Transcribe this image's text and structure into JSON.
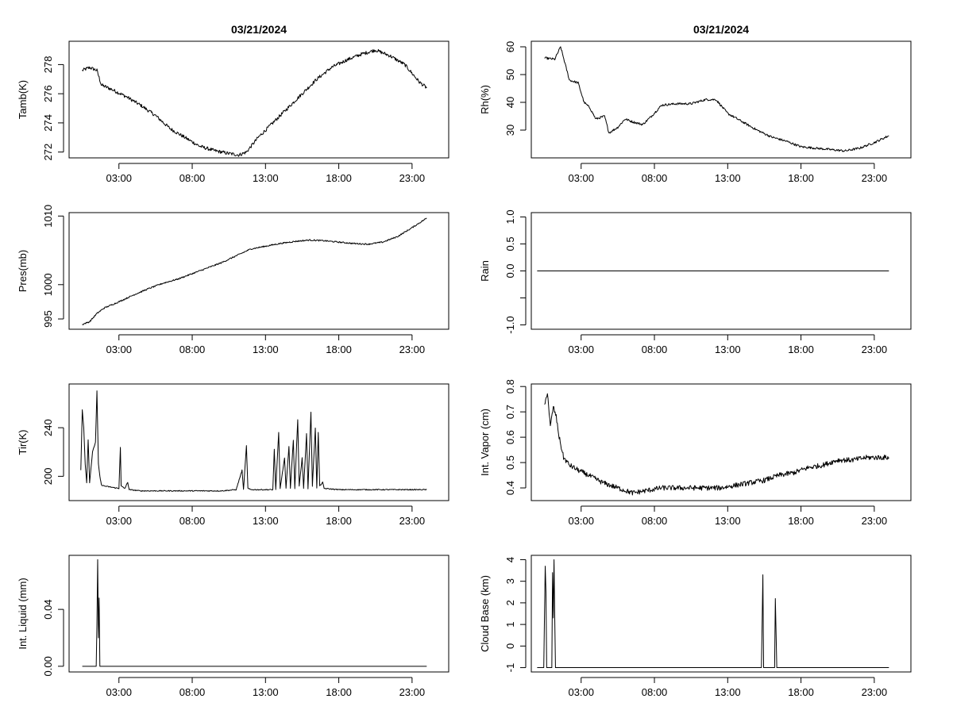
{
  "chart_data": [
    {
      "type": "line",
      "title": "03/21/2024",
      "ylabel": "Tamb(K)",
      "x_unit": "hours",
      "xlim": [
        -0.4,
        25.5
      ],
      "ylim": [
        271.6,
        279.6
      ],
      "xticks": [
        3,
        8,
        13,
        18,
        23
      ],
      "xtick_labels": [
        "03:00",
        "08:00",
        "13:00",
        "18:00",
        "23:00"
      ],
      "yticks": [
        272,
        274,
        276,
        278
      ],
      "ytick_labels": [
        "272",
        "274",
        "276",
        "278"
      ],
      "noise": 0.12,
      "points": [
        [
          0.5,
          277.6
        ],
        [
          1.0,
          277.8
        ],
        [
          1.5,
          277.6
        ],
        [
          1.8,
          276.6
        ],
        [
          2.5,
          276.3
        ],
        [
          3.5,
          275.8
        ],
        [
          4.5,
          275.2
        ],
        [
          5.5,
          274.5
        ],
        [
          6.5,
          273.6
        ],
        [
          7.5,
          273.0
        ],
        [
          8.5,
          272.4
        ],
        [
          9.5,
          272.1
        ],
        [
          10.5,
          271.9
        ],
        [
          11.2,
          271.8
        ],
        [
          11.7,
          272.0
        ],
        [
          12.5,
          273.0
        ],
        [
          13.5,
          274.0
        ],
        [
          14.5,
          275.0
        ],
        [
          15.5,
          276.0
        ],
        [
          16.5,
          277.0
        ],
        [
          17.5,
          277.8
        ],
        [
          18.5,
          278.3
        ],
        [
          19.5,
          278.7
        ],
        [
          20.5,
          279.0
        ],
        [
          21.5,
          278.6
        ],
        [
          22.5,
          278.0
        ],
        [
          23.5,
          276.8
        ],
        [
          24.0,
          276.4
        ]
      ]
    },
    {
      "type": "line",
      "title": "03/21/2024",
      "ylabel": "Rh(%)",
      "x_unit": "hours",
      "xlim": [
        -0.4,
        25.5
      ],
      "ylim": [
        20,
        62
      ],
      "xticks": [
        3,
        8,
        13,
        18,
        23
      ],
      "xtick_labels": [
        "03:00",
        "08:00",
        "13:00",
        "18:00",
        "23:00"
      ],
      "yticks": [
        30,
        40,
        50,
        60
      ],
      "ytick_labels": [
        "30",
        "40",
        "50",
        "60"
      ],
      "noise": 0.4,
      "points": [
        [
          0.5,
          56
        ],
        [
          1.2,
          55.5
        ],
        [
          1.6,
          60
        ],
        [
          1.9,
          54
        ],
        [
          2.2,
          48
        ],
        [
          2.8,
          47
        ],
        [
          3.2,
          40
        ],
        [
          3.6,
          38
        ],
        [
          4.0,
          34
        ],
        [
          4.6,
          35
        ],
        [
          4.9,
          29
        ],
        [
          5.5,
          31
        ],
        [
          6.0,
          34
        ],
        [
          6.5,
          33
        ],
        [
          7.2,
          32
        ],
        [
          7.8,
          35
        ],
        [
          8.5,
          39
        ],
        [
          9.5,
          39.5
        ],
        [
          10.5,
          39.5
        ],
        [
          11.5,
          41
        ],
        [
          12.2,
          41
        ],
        [
          13.0,
          36
        ],
        [
          14.0,
          33
        ],
        [
          15.0,
          30
        ],
        [
          16.0,
          27.5
        ],
        [
          17.0,
          26
        ],
        [
          18.0,
          24
        ],
        [
          19.0,
          23.5
        ],
        [
          20.0,
          23
        ],
        [
          21.0,
          22.5
        ],
        [
          22.0,
          23.5
        ],
        [
          23.0,
          25.5
        ],
        [
          24.0,
          28
        ]
      ]
    },
    {
      "type": "line",
      "title": "",
      "ylabel": "Pres(mb)",
      "x_unit": "hours",
      "xlim": [
        -0.4,
        25.5
      ],
      "ylim": [
        993.5,
        1010.5
      ],
      "xticks": [
        3,
        8,
        13,
        18,
        23
      ],
      "xtick_labels": [
        "03:00",
        "08:00",
        "13:00",
        "18:00",
        "23:00"
      ],
      "yticks": [
        995,
        1000,
        1010
      ],
      "ytick_labels": [
        "995",
        "1000",
        "1010"
      ],
      "noise": 0.1,
      "points": [
        [
          0.5,
          994.2
        ],
        [
          1.0,
          994.6
        ],
        [
          1.5,
          995.8
        ],
        [
          2.0,
          996.6
        ],
        [
          3.0,
          997.5
        ],
        [
          4.0,
          998.5
        ],
        [
          5.0,
          999.4
        ],
        [
          6.0,
          1000.2
        ],
        [
          7.0,
          1000.8
        ],
        [
          8.0,
          1001.6
        ],
        [
          9.0,
          1002.4
        ],
        [
          10.0,
          1003.2
        ],
        [
          11.0,
          1004.2
        ],
        [
          12.0,
          1005.2
        ],
        [
          13.0,
          1005.6
        ],
        [
          14.0,
          1006.0
        ],
        [
          15.0,
          1006.3
        ],
        [
          16.0,
          1006.5
        ],
        [
          17.0,
          1006.4
        ],
        [
          18.0,
          1006.2
        ],
        [
          19.0,
          1006.0
        ],
        [
          20.0,
          1005.9
        ],
        [
          21.0,
          1006.2
        ],
        [
          22.0,
          1007.0
        ],
        [
          23.0,
          1008.3
        ],
        [
          24.0,
          1009.7
        ]
      ]
    },
    {
      "type": "line",
      "title": "",
      "ylabel": "Rain",
      "x_unit": "hours",
      "xlim": [
        -0.4,
        25.5
      ],
      "ylim": [
        -1.08,
        1.08
      ],
      "xticks": [
        3,
        8,
        13,
        18,
        23
      ],
      "xtick_labels": [
        "03:00",
        "08:00",
        "13:00",
        "18:00",
        "23:00"
      ],
      "yticks": [
        -1.0,
        -0.5,
        0.0,
        0.5,
        1.0
      ],
      "ytick_labels": [
        "-1.0",
        "",
        "0.0",
        "0.5",
        "1.0"
      ],
      "noise": 0,
      "points": [
        [
          0.0,
          0.0
        ],
        [
          24.0,
          0.0
        ]
      ]
    },
    {
      "type": "line",
      "title": "",
      "ylabel": "Tir(K)",
      "x_unit": "hours",
      "xlim": [
        -0.4,
        25.5
      ],
      "ylim": [
        180,
        276
      ],
      "xticks": [
        3,
        8,
        13,
        18,
        23
      ],
      "xtick_labels": [
        "03:00",
        "08:00",
        "13:00",
        "18:00",
        "23:00"
      ],
      "yticks": [
        200,
        240
      ],
      "ytick_labels": [
        "200",
        "240"
      ],
      "noise": 0.4,
      "points": [
        [
          0.4,
          205
        ],
        [
          0.5,
          255
        ],
        [
          0.6,
          240
        ],
        [
          0.7,
          210
        ],
        [
          0.8,
          195
        ],
        [
          0.9,
          230
        ],
        [
          1.0,
          195
        ],
        [
          1.2,
          220
        ],
        [
          1.4,
          228
        ],
        [
          1.5,
          270
        ],
        [
          1.6,
          210
        ],
        [
          1.7,
          200
        ],
        [
          1.8,
          193
        ],
        [
          2.0,
          192
        ],
        [
          2.5,
          191
        ],
        [
          3.0,
          190
        ],
        [
          3.1,
          224
        ],
        [
          3.15,
          192
        ],
        [
          3.4,
          190
        ],
        [
          3.6,
          195
        ],
        [
          3.7,
          189
        ],
        [
          4.5,
          188
        ],
        [
          6.0,
          188
        ],
        [
          8.0,
          188
        ],
        [
          10.0,
          188
        ],
        [
          11.0,
          189
        ],
        [
          11.4,
          205
        ],
        [
          11.5,
          189
        ],
        [
          11.7,
          225
        ],
        [
          11.8,
          190
        ],
        [
          12.0,
          189
        ],
        [
          13.0,
          189
        ],
        [
          13.5,
          189
        ],
        [
          13.6,
          222
        ],
        [
          13.7,
          189
        ],
        [
          13.9,
          236
        ],
        [
          14.0,
          190
        ],
        [
          14.3,
          215
        ],
        [
          14.4,
          190
        ],
        [
          14.6,
          225
        ],
        [
          14.7,
          190
        ],
        [
          14.9,
          230
        ],
        [
          15.0,
          190
        ],
        [
          15.2,
          247
        ],
        [
          15.3,
          192
        ],
        [
          15.5,
          215
        ],
        [
          15.6,
          190
        ],
        [
          15.8,
          235
        ],
        [
          15.9,
          190
        ],
        [
          16.1,
          253
        ],
        [
          16.2,
          192
        ],
        [
          16.4,
          240
        ],
        [
          16.5,
          190
        ],
        [
          16.6,
          236
        ],
        [
          16.7,
          192
        ],
        [
          16.9,
          195
        ],
        [
          17.0,
          190
        ],
        [
          18.0,
          189
        ],
        [
          20.0,
          189
        ],
        [
          22.0,
          189
        ],
        [
          24.0,
          189
        ]
      ]
    },
    {
      "type": "line",
      "title": "",
      "ylabel": "Int. Vapor (cm)",
      "x_unit": "hours",
      "xlim": [
        -0.4,
        25.5
      ],
      "ylim": [
        0.35,
        0.81
      ],
      "xticks": [
        3,
        8,
        13,
        18,
        23
      ],
      "xtick_labels": [
        "03:00",
        "08:00",
        "13:00",
        "18:00",
        "23:00"
      ],
      "yticks": [
        0.4,
        0.5,
        0.6,
        0.7,
        0.8
      ],
      "ytick_labels": [
        "0.4",
        "0.5",
        "0.6",
        "0.7",
        "0.8"
      ],
      "noise": 0.01,
      "points": [
        [
          0.5,
          0.72
        ],
        [
          0.7,
          0.78
        ],
        [
          0.9,
          0.64
        ],
        [
          1.1,
          0.72
        ],
        [
          1.3,
          0.68
        ],
        [
          1.5,
          0.6
        ],
        [
          1.8,
          0.52
        ],
        [
          2.2,
          0.49
        ],
        [
          2.8,
          0.47
        ],
        [
          3.5,
          0.45
        ],
        [
          4.5,
          0.42
        ],
        [
          5.5,
          0.4
        ],
        [
          6.5,
          0.38
        ],
        [
          7.5,
          0.39
        ],
        [
          8.5,
          0.4
        ],
        [
          9.5,
          0.4
        ],
        [
          10.5,
          0.4
        ],
        [
          11.5,
          0.4
        ],
        [
          12.5,
          0.4
        ],
        [
          13.5,
          0.41
        ],
        [
          14.5,
          0.42
        ],
        [
          15.5,
          0.43
        ],
        [
          16.5,
          0.45
        ],
        [
          17.5,
          0.46
        ],
        [
          18.5,
          0.48
        ],
        [
          19.5,
          0.49
        ],
        [
          20.5,
          0.51
        ],
        [
          21.5,
          0.51
        ],
        [
          22.5,
          0.52
        ],
        [
          23.5,
          0.52
        ],
        [
          24.0,
          0.52
        ]
      ]
    },
    {
      "type": "line",
      "title": "",
      "ylabel": "Int. Liquid (mm)",
      "x_unit": "hours",
      "xlim": [
        -0.4,
        25.5
      ],
      "ylim": [
        -0.004,
        0.078
      ],
      "xticks": [
        3,
        8,
        13,
        18,
        23
      ],
      "xtick_labels": [
        "03:00",
        "08:00",
        "13:00",
        "18:00",
        "23:00"
      ],
      "yticks": [
        0.0,
        0.04
      ],
      "ytick_labels": [
        "0.00",
        "0.04"
      ],
      "noise": 0,
      "points": [
        [
          0.5,
          0.0
        ],
        [
          1.45,
          0.0
        ],
        [
          1.5,
          0.03
        ],
        [
          1.55,
          0.075
        ],
        [
          1.6,
          0.02
        ],
        [
          1.65,
          0.048
        ],
        [
          1.7,
          0.0
        ],
        [
          24.0,
          0.0
        ]
      ]
    },
    {
      "type": "line",
      "title": "",
      "ylabel": "Cloud Base (km)",
      "x_unit": "hours",
      "xlim": [
        -0.4,
        25.5
      ],
      "ylim": [
        -1.2,
        4.2
      ],
      "xticks": [
        3,
        8,
        13,
        18,
        23
      ],
      "xtick_labels": [
        "03:00",
        "08:00",
        "13:00",
        "18:00",
        "23:00"
      ],
      "yticks": [
        -1,
        0,
        1,
        2,
        3,
        4
      ],
      "ytick_labels": [
        "-1",
        "0",
        "1",
        "2",
        "3",
        "4"
      ],
      "noise": 0,
      "points": [
        [
          0.0,
          -1
        ],
        [
          0.45,
          -1
        ],
        [
          0.5,
          1.4
        ],
        [
          0.55,
          3.7
        ],
        [
          0.6,
          2.5
        ],
        [
          0.65,
          -1
        ],
        [
          1.0,
          -1
        ],
        [
          1.05,
          3.4
        ],
        [
          1.1,
          1.3
        ],
        [
          1.15,
          4.0
        ],
        [
          1.2,
          1.3
        ],
        [
          1.25,
          -1
        ],
        [
          15.3,
          -1
        ],
        [
          15.35,
          1.1
        ],
        [
          15.4,
          3.3
        ],
        [
          15.45,
          -1
        ],
        [
          16.2,
          -1
        ],
        [
          16.25,
          2.2
        ],
        [
          16.3,
          0.6
        ],
        [
          16.35,
          -1
        ],
        [
          24.0,
          -1
        ]
      ]
    }
  ]
}
